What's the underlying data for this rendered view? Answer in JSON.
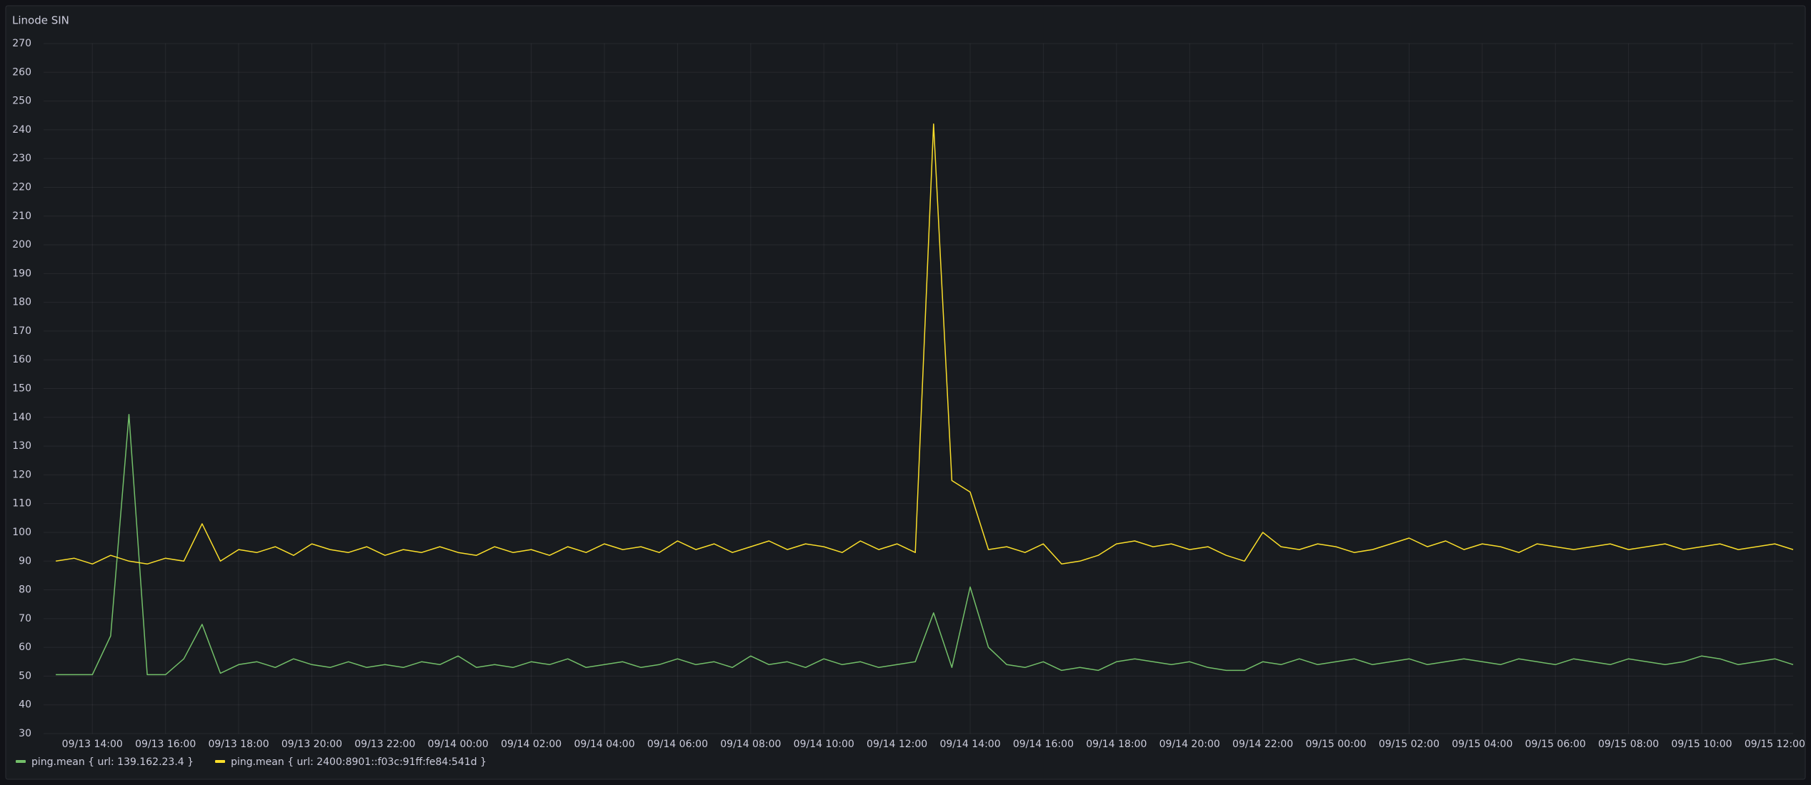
{
  "chart_data": {
    "type": "line",
    "title": "Linode SIN",
    "x": [
      "09/13 13:00",
      "09/13 13:30",
      "09/13 14:00",
      "09/13 14:30",
      "09/13 15:00",
      "09/13 15:30",
      "09/13 16:00",
      "09/13 16:30",
      "09/13 17:00",
      "09/13 17:30",
      "09/13 18:00",
      "09/13 18:30",
      "09/13 19:00",
      "09/13 19:30",
      "09/13 20:00",
      "09/13 20:30",
      "09/13 21:00",
      "09/13 21:30",
      "09/13 22:00",
      "09/13 22:30",
      "09/13 23:00",
      "09/13 23:30",
      "09/14 00:00",
      "09/14 00:30",
      "09/14 01:00",
      "09/14 01:30",
      "09/14 02:00",
      "09/14 02:30",
      "09/14 03:00",
      "09/14 03:30",
      "09/14 04:00",
      "09/14 04:30",
      "09/14 05:00",
      "09/14 05:30",
      "09/14 06:00",
      "09/14 06:30",
      "09/14 07:00",
      "09/14 07:30",
      "09/14 08:00",
      "09/14 08:30",
      "09/14 09:00",
      "09/14 09:30",
      "09/14 10:00",
      "09/14 10:30",
      "09/14 11:00",
      "09/14 11:30",
      "09/14 12:00",
      "09/14 12:30",
      "09/14 13:00",
      "09/14 13:30",
      "09/14 14:00",
      "09/14 14:30",
      "09/14 15:00",
      "09/14 15:30",
      "09/14 16:00",
      "09/14 16:30",
      "09/14 17:00",
      "09/14 17:30",
      "09/14 18:00",
      "09/14 18:30",
      "09/14 19:00",
      "09/14 19:30",
      "09/14 20:00",
      "09/14 20:30",
      "09/14 21:00",
      "09/14 21:30",
      "09/14 22:00",
      "09/14 22:30",
      "09/14 23:00",
      "09/14 23:30",
      "09/15 00:00",
      "09/15 00:30",
      "09/15 01:00",
      "09/15 01:30",
      "09/15 02:00",
      "09/15 02:30",
      "09/15 03:00",
      "09/15 03:30",
      "09/15 04:00",
      "09/15 04:30",
      "09/15 05:00",
      "09/15 05:30",
      "09/15 06:00",
      "09/15 06:30",
      "09/15 07:00",
      "09/15 07:30",
      "09/15 08:00",
      "09/15 08:30",
      "09/15 09:00",
      "09/15 09:30",
      "09/15 10:00",
      "09/15 10:30",
      "09/15 11:00",
      "09/15 11:30",
      "09/15 12:00",
      "09/15 12:30"
    ],
    "series": [
      {
        "name": "ping.mean { url: 139.162.23.4 }",
        "color": "#73bf69",
        "values": [
          50.5,
          50.5,
          50.5,
          64,
          141,
          50.5,
          50.5,
          56,
          68,
          51,
          54,
          55,
          53,
          56,
          54,
          53,
          55,
          53,
          54,
          53,
          55,
          54,
          57,
          53,
          54,
          53,
          55,
          54,
          56,
          53,
          54,
          55,
          53,
          54,
          56,
          54,
          55,
          53,
          57,
          54,
          55,
          53,
          56,
          54,
          55,
          53,
          54,
          55,
          72,
          53,
          81,
          60,
          54,
          53,
          55,
          52,
          53,
          52,
          55,
          56,
          55,
          54,
          55,
          53,
          52,
          52,
          55,
          54,
          56,
          54,
          55,
          56,
          54,
          55,
          56,
          54,
          55,
          56,
          55,
          54,
          56,
          55,
          54,
          56,
          55,
          54,
          56,
          55,
          54,
          55,
          57,
          56,
          54,
          55,
          56,
          54
        ]
      },
      {
        "name": "ping.mean { url: 2400:8901::f03c:91ff:fe84:541d }",
        "color": "#fade2a",
        "values": [
          90,
          91,
          89,
          92,
          90,
          89,
          91,
          90,
          103,
          90,
          94,
          93,
          95,
          92,
          96,
          94,
          93,
          95,
          92,
          94,
          93,
          95,
          93,
          92,
          95,
          93,
          94,
          92,
          95,
          93,
          96,
          94,
          95,
          93,
          97,
          94,
          96,
          93,
          95,
          97,
          94,
          96,
          95,
          93,
          97,
          94,
          96,
          93,
          242,
          118,
          114,
          94,
          95,
          93,
          96,
          89,
          90,
          92,
          96,
          97,
          95,
          96,
          94,
          95,
          92,
          90,
          100,
          95,
          94,
          96,
          95,
          93,
          94,
          96,
          98,
          95,
          97,
          94,
          96,
          95,
          93,
          96,
          95,
          94,
          95,
          96,
          94,
          95,
          96,
          94,
          95,
          96,
          94,
          95,
          96,
          94
        ]
      }
    ],
    "xlim": [
      "09/13 12:40",
      "09/15 12:30"
    ],
    "xticks": [
      "09/13 14:00",
      "09/13 16:00",
      "09/13 18:00",
      "09/13 20:00",
      "09/13 22:00",
      "09/14 00:00",
      "09/14 02:00",
      "09/14 04:00",
      "09/14 06:00",
      "09/14 08:00",
      "09/14 10:00",
      "09/14 12:00",
      "09/14 14:00",
      "09/14 16:00",
      "09/14 18:00",
      "09/14 20:00",
      "09/14 22:00",
      "09/15 00:00",
      "09/15 02:00",
      "09/15 04:00",
      "09/15 06:00",
      "09/15 08:00",
      "09/15 10:00",
      "09/15 12:00"
    ],
    "ylim": [
      30,
      270
    ],
    "yticks": [
      30,
      40,
      50,
      60,
      70,
      80,
      90,
      100,
      110,
      120,
      130,
      140,
      150,
      160,
      170,
      180,
      190,
      200,
      210,
      220,
      230,
      240,
      250,
      260,
      270
    ],
    "grid": true
  }
}
